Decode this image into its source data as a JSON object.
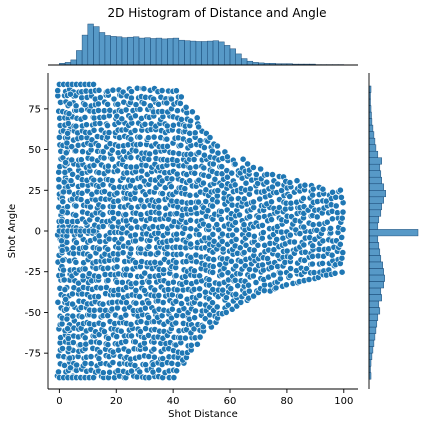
{
  "chart_data": {
    "type": "scatter",
    "title": "2D Histogram of Distance and Angle",
    "xlabel": "Shot Distance",
    "ylabel": "Shot Angle",
    "xlim": [
      -4,
      105
    ],
    "ylim": [
      -97,
      97
    ],
    "xticks": [
      0,
      20,
      40,
      60,
      80,
      100
    ],
    "yticks": [
      -75,
      -50,
      -25,
      0,
      25,
      50,
      75
    ],
    "grid": false,
    "legend": "none",
    "point_color": "#1f77b4",
    "point_edge_color": "#ffffff",
    "envelope": {
      "x": [
        0,
        10,
        20,
        30,
        40,
        45,
        50,
        55,
        60,
        65,
        70,
        75,
        80,
        85,
        90,
        95,
        100
      ],
      "max_angle": [
        90,
        90,
        90,
        90,
        90,
        78,
        64,
        55,
        49,
        43,
        39,
        36,
        33,
        31,
        29,
        27,
        25
      ],
      "min_angle": [
        -90,
        -90,
        -90,
        -90,
        -90,
        -78,
        -64,
        -55,
        -49,
        -43,
        -39,
        -36,
        -33,
        -31,
        -29,
        -27,
        -25
      ]
    },
    "marginal_x": {
      "type": "histogram",
      "bins_x": [
        1,
        3,
        5,
        7,
        9,
        11,
        13,
        15,
        17,
        19,
        21,
        23,
        25,
        27,
        29,
        31,
        33,
        35,
        37,
        39,
        41,
        43,
        45,
        47,
        49,
        51,
        53,
        55,
        57,
        59,
        61,
        63,
        65,
        67,
        69,
        71,
        73,
        75,
        77,
        79,
        81,
        83,
        85,
        87,
        89,
        91,
        93,
        95,
        97,
        99
      ],
      "counts": [
        4,
        6,
        12,
        34,
        70,
        96,
        90,
        76,
        69,
        67,
        66,
        64,
        65,
        66,
        63,
        64,
        62,
        63,
        61,
        62,
        63,
        58,
        57,
        56,
        55,
        55,
        56,
        57,
        54,
        46,
        38,
        26,
        15,
        9,
        6,
        5,
        4,
        4,
        3,
        3,
        3,
        2,
        2,
        2,
        2,
        1,
        1,
        1,
        1,
        1
      ]
    },
    "marginal_y": {
      "type": "histogram",
      "bins_y": [
        -89,
        -85,
        -81,
        -77,
        -73,
        -69,
        -65,
        -61,
        -57,
        -53,
        -49,
        -45,
        -41,
        -37,
        -33,
        -29,
        -25,
        -21,
        -17,
        -13,
        -9,
        -5,
        -1,
        3,
        7,
        11,
        15,
        19,
        23,
        27,
        31,
        35,
        39,
        43,
        47,
        51,
        55,
        59,
        63,
        67,
        71,
        75,
        79,
        83,
        87
      ],
      "counts": [
        4,
        3,
        4,
        6,
        8,
        10,
        12,
        14,
        16,
        18,
        22,
        20,
        26,
        24,
        30,
        32,
        30,
        28,
        24,
        22,
        20,
        18,
        100,
        18,
        20,
        24,
        26,
        30,
        34,
        30,
        26,
        24,
        22,
        26,
        18,
        14,
        12,
        10,
        8,
        6,
        5,
        4,
        3,
        3,
        4
      ]
    }
  }
}
